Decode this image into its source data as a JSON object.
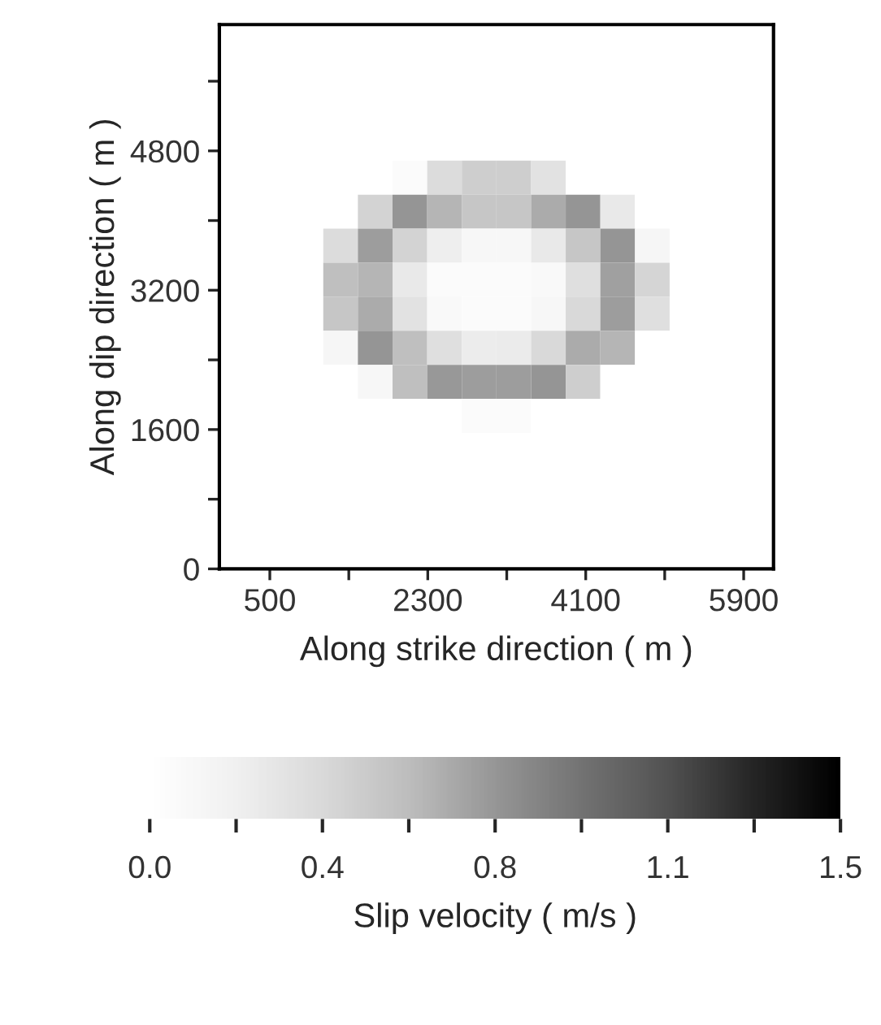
{
  "chart_data": {
    "type": "heatmap",
    "xlabel": "Along strike direction ( m )",
    "ylabel": "Along dip direction ( m )",
    "clabel": "Slip velocity ( m/s )",
    "x": [
      122,
      517,
      912,
      1306,
      1701,
      2096,
      2491,
      2885,
      3280,
      3675,
      4069,
      4464,
      4859,
      5254,
      5648,
      6043
    ],
    "y": [
      6055,
      5664,
      5273,
      4883,
      4492,
      4102,
      3711,
      3320,
      2930,
      2539,
      2148,
      1758,
      1367,
      977,
      586,
      195
    ],
    "xlim": [
      -75,
      6240
    ],
    "ylim": [
      0,
      6250
    ],
    "xticks": [
      500,
      {
        "value": 1400,
        "label": null
      },
      2300,
      {
        "value": 3200,
        "label": null
      },
      4100,
      {
        "value": 5000,
        "label": null
      },
      5900
    ],
    "yticks": [
      0,
      {
        "value": 800,
        "label": null
      },
      1600,
      {
        "value": 2400,
        "label": null
      },
      3200,
      {
        "value": 4000,
        "label": null
      },
      4800,
      {
        "value": 5600,
        "label": null
      }
    ],
    "clim": [
      0,
      1.5
    ],
    "cticks": [
      {
        "value": 0,
        "label": "0.0"
      },
      {
        "value": 0.1875,
        "label": null
      },
      {
        "value": 0.375,
        "label": "0.4"
      },
      {
        "value": 0.5625,
        "label": null
      },
      {
        "value": 0.75,
        "label": "0.8"
      },
      {
        "value": 0.9375,
        "label": null
      },
      {
        "value": 1.125,
        "label": "1.1"
      },
      {
        "value": 1.3125,
        "label": null
      },
      1.5
    ],
    "cells": [
      [
        0,
        0,
        0,
        0,
        0,
        0,
        0,
        0,
        0,
        0,
        0,
        0,
        0,
        0,
        0,
        0
      ],
      [
        0,
        0,
        0,
        0,
        0,
        0,
        0,
        0,
        0,
        0,
        0,
        0,
        0,
        0,
        0,
        0
      ],
      [
        0,
        0,
        0,
        0,
        0,
        0,
        0,
        0,
        0,
        0,
        0,
        0,
        0,
        0,
        0,
        0
      ],
      [
        0,
        0,
        0,
        0,
        0,
        0,
        0,
        0,
        0,
        0,
        0,
        0,
        0,
        0,
        0,
        0
      ],
      [
        0,
        0,
        0,
        0,
        0,
        0.05,
        0.35,
        0.45,
        0.45,
        0.3,
        0,
        0,
        0,
        0,
        0,
        0
      ],
      [
        0,
        0,
        0,
        0,
        0.42,
        0.75,
        0.6,
        0.5,
        0.5,
        0.65,
        0.75,
        0.25,
        0,
        0,
        0,
        0
      ],
      [
        0,
        0,
        0,
        0.35,
        0.72,
        0.42,
        0.2,
        0.1,
        0.1,
        0.25,
        0.5,
        0.75,
        0.12,
        0,
        0,
        0
      ],
      [
        0,
        0,
        0,
        0.55,
        0.6,
        0.25,
        0.05,
        0.05,
        0.05,
        0.08,
        0.33,
        0.7,
        0.4,
        0,
        0,
        0
      ],
      [
        0,
        0,
        0,
        0.5,
        0.65,
        0.3,
        0.08,
        0.05,
        0.05,
        0.1,
        0.38,
        0.72,
        0.33,
        0,
        0,
        0
      ],
      [
        0,
        0,
        0,
        0.12,
        0.75,
        0.55,
        0.33,
        0.22,
        0.23,
        0.38,
        0.65,
        0.6,
        0,
        0,
        0,
        0
      ],
      [
        0,
        0,
        0,
        0,
        0.1,
        0.55,
        0.74,
        0.72,
        0.72,
        0.75,
        0.45,
        0,
        0,
        0,
        0,
        0
      ],
      [
        0,
        0,
        0,
        0,
        0,
        0,
        0,
        0.05,
        0.05,
        0,
        0,
        0,
        0,
        0,
        0,
        0
      ],
      [
        0,
        0,
        0,
        0,
        0,
        0,
        0,
        0,
        0,
        0,
        0,
        0,
        0,
        0,
        0,
        0
      ],
      [
        0,
        0,
        0,
        0,
        0,
        0,
        0,
        0,
        0,
        0,
        0,
        0,
        0,
        0,
        0,
        0
      ],
      [
        0,
        0,
        0,
        0,
        0,
        0,
        0,
        0,
        0,
        0,
        0,
        0,
        0,
        0,
        0,
        0
      ],
      [
        0,
        0,
        0,
        0,
        0,
        0,
        0,
        0,
        0,
        0,
        0,
        0,
        0,
        0,
        0,
        0
      ]
    ]
  }
}
